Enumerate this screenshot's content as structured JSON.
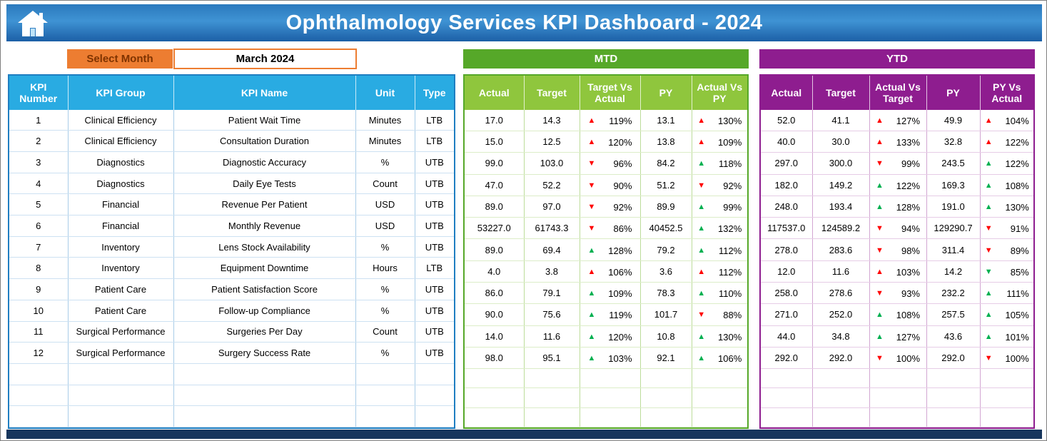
{
  "page": {
    "title": "Ophthalmology Services KPI Dashboard - 2024"
  },
  "controls": {
    "select_month_label": "Select Month",
    "selected_month": "March 2024"
  },
  "colors": {
    "titlebar_blue": "#2E7FC2",
    "table_header_blue": "#29ABE2",
    "accent_orange": "#ED7D31",
    "mtd_banner_green": "#56A829",
    "mtd_header_green": "#8FC63D",
    "ytd_purple": "#8E1D8F",
    "arrow_red": "#FF0000",
    "arrow_green": "#00B050",
    "footer_navy": "#17365D"
  },
  "kpi_table": {
    "headers": [
      "KPI Number",
      "KPI Group",
      "KPI Name",
      "Unit",
      "Type"
    ],
    "rows": [
      [
        "1",
        "Clinical Efficiency",
        "Patient Wait Time",
        "Minutes",
        "LTB"
      ],
      [
        "2",
        "Clinical Efficiency",
        "Consultation Duration",
        "Minutes",
        "LTB"
      ],
      [
        "3",
        "Diagnostics",
        "Diagnostic Accuracy",
        "%",
        "UTB"
      ],
      [
        "4",
        "Diagnostics",
        "Daily Eye Tests",
        "Count",
        "UTB"
      ],
      [
        "5",
        "Financial",
        "Revenue Per Patient",
        "USD",
        "UTB"
      ],
      [
        "6",
        "Financial",
        "Monthly Revenue",
        "USD",
        "UTB"
      ],
      [
        "7",
        "Inventory",
        "Lens Stock Availability",
        "%",
        "UTB"
      ],
      [
        "8",
        "Inventory",
        "Equipment Downtime",
        "Hours",
        "LTB"
      ],
      [
        "9",
        "Patient Care",
        "Patient Satisfaction Score",
        "%",
        "UTB"
      ],
      [
        "10",
        "Patient Care",
        "Follow-up Compliance",
        "%",
        "UTB"
      ],
      [
        "11",
        "Surgical Performance",
        "Surgeries Per Day",
        "Count",
        "UTB"
      ],
      [
        "12",
        "Surgical Performance",
        "Surgery Success Rate",
        "%",
        "UTB"
      ]
    ],
    "empty_rows": 3
  },
  "mtd_table": {
    "title": "MTD",
    "headers": [
      "Actual",
      "Target",
      "Target Vs Actual",
      "PY",
      "Actual Vs PY"
    ],
    "rows": [
      [
        "17.0",
        "14.3",
        {
          "pct": "119%",
          "dir": "up",
          "color": "red"
        },
        "13.1",
        {
          "pct": "130%",
          "dir": "up",
          "color": "red"
        }
      ],
      [
        "15.0",
        "12.5",
        {
          "pct": "120%",
          "dir": "up",
          "color": "red"
        },
        "13.8",
        {
          "pct": "109%",
          "dir": "up",
          "color": "red"
        }
      ],
      [
        "99.0",
        "103.0",
        {
          "pct": "96%",
          "dir": "down",
          "color": "red"
        },
        "84.2",
        {
          "pct": "118%",
          "dir": "up",
          "color": "green"
        }
      ],
      [
        "47.0",
        "52.2",
        {
          "pct": "90%",
          "dir": "down",
          "color": "red"
        },
        "51.2",
        {
          "pct": "92%",
          "dir": "down",
          "color": "red"
        }
      ],
      [
        "89.0",
        "97.0",
        {
          "pct": "92%",
          "dir": "down",
          "color": "red"
        },
        "89.9",
        {
          "pct": "99%",
          "dir": "up",
          "color": "green"
        }
      ],
      [
        "53227.0",
        "61743.3",
        {
          "pct": "86%",
          "dir": "down",
          "color": "red"
        },
        "40452.5",
        {
          "pct": "132%",
          "dir": "up",
          "color": "green"
        }
      ],
      [
        "89.0",
        "69.4",
        {
          "pct": "128%",
          "dir": "up",
          "color": "green"
        },
        "79.2",
        {
          "pct": "112%",
          "dir": "up",
          "color": "green"
        }
      ],
      [
        "4.0",
        "3.8",
        {
          "pct": "106%",
          "dir": "up",
          "color": "red"
        },
        "3.6",
        {
          "pct": "112%",
          "dir": "up",
          "color": "red"
        }
      ],
      [
        "86.0",
        "79.1",
        {
          "pct": "109%",
          "dir": "up",
          "color": "green"
        },
        "78.3",
        {
          "pct": "110%",
          "dir": "up",
          "color": "green"
        }
      ],
      [
        "90.0",
        "75.6",
        {
          "pct": "119%",
          "dir": "up",
          "color": "green"
        },
        "101.7",
        {
          "pct": "88%",
          "dir": "down",
          "color": "red"
        }
      ],
      [
        "14.0",
        "11.6",
        {
          "pct": "120%",
          "dir": "up",
          "color": "green"
        },
        "10.8",
        {
          "pct": "130%",
          "dir": "up",
          "color": "green"
        }
      ],
      [
        "98.0",
        "95.1",
        {
          "pct": "103%",
          "dir": "up",
          "color": "green"
        },
        "92.1",
        {
          "pct": "106%",
          "dir": "up",
          "color": "green"
        }
      ]
    ],
    "empty_rows": 3
  },
  "ytd_table": {
    "title": "YTD",
    "headers": [
      "Actual",
      "Target",
      "Actual Vs Target",
      "PY",
      "PY Vs Actual"
    ],
    "rows": [
      [
        "52.0",
        "41.1",
        {
          "pct": "127%",
          "dir": "up",
          "color": "red"
        },
        "49.9",
        {
          "pct": "104%",
          "dir": "up",
          "color": "red"
        }
      ],
      [
        "40.0",
        "30.0",
        {
          "pct": "133%",
          "dir": "up",
          "color": "red"
        },
        "32.8",
        {
          "pct": "122%",
          "dir": "up",
          "color": "red"
        }
      ],
      [
        "297.0",
        "300.0",
        {
          "pct": "99%",
          "dir": "down",
          "color": "red"
        },
        "243.5",
        {
          "pct": "122%",
          "dir": "up",
          "color": "green"
        }
      ],
      [
        "182.0",
        "149.2",
        {
          "pct": "122%",
          "dir": "up",
          "color": "green"
        },
        "169.3",
        {
          "pct": "108%",
          "dir": "up",
          "color": "green"
        }
      ],
      [
        "248.0",
        "193.4",
        {
          "pct": "128%",
          "dir": "up",
          "color": "green"
        },
        "191.0",
        {
          "pct": "130%",
          "dir": "up",
          "color": "green"
        }
      ],
      [
        "117537.0",
        "124589.2",
        {
          "pct": "94%",
          "dir": "down",
          "color": "red"
        },
        "129290.7",
        {
          "pct": "91%",
          "dir": "down",
          "color": "red"
        }
      ],
      [
        "278.0",
        "283.6",
        {
          "pct": "98%",
          "dir": "down",
          "color": "red"
        },
        "311.4",
        {
          "pct": "89%",
          "dir": "down",
          "color": "red"
        }
      ],
      [
        "12.0",
        "11.6",
        {
          "pct": "103%",
          "dir": "up",
          "color": "red"
        },
        "14.2",
        {
          "pct": "85%",
          "dir": "down",
          "color": "green"
        }
      ],
      [
        "258.0",
        "278.6",
        {
          "pct": "93%",
          "dir": "down",
          "color": "red"
        },
        "232.2",
        {
          "pct": "111%",
          "dir": "up",
          "color": "green"
        }
      ],
      [
        "271.0",
        "252.0",
        {
          "pct": "108%",
          "dir": "up",
          "color": "green"
        },
        "257.5",
        {
          "pct": "105%",
          "dir": "up",
          "color": "green"
        }
      ],
      [
        "44.0",
        "34.8",
        {
          "pct": "127%",
          "dir": "up",
          "color": "green"
        },
        "43.6",
        {
          "pct": "101%",
          "dir": "up",
          "color": "green"
        }
      ],
      [
        "292.0",
        "292.0",
        {
          "pct": "100%",
          "dir": "down",
          "color": "red"
        },
        "292.0",
        {
          "pct": "100%",
          "dir": "down",
          "color": "red"
        }
      ]
    ],
    "empty_rows": 3
  }
}
